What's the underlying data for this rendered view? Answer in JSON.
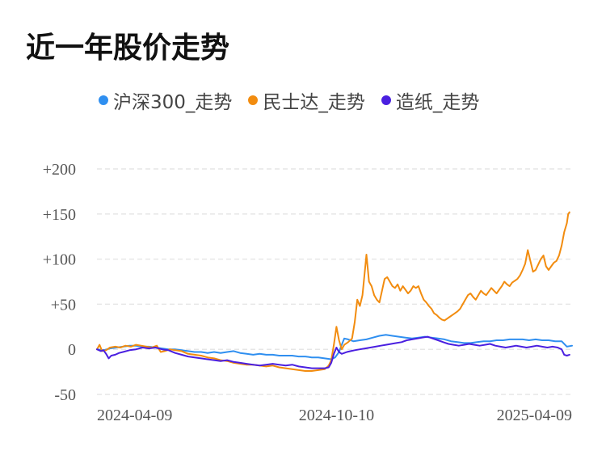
{
  "page": {
    "title": "近一年股价走势"
  },
  "chart_data": {
    "type": "line",
    "title": "近一年股价走势",
    "xlabel": "",
    "ylabel": "",
    "x_ticks": [
      "2024-04-09",
      "2024-10-10",
      "2025-04-09"
    ],
    "y_ticks": [
      "+200",
      "+150",
      "+100",
      "+50",
      "0",
      "-50"
    ],
    "y_tick_values": [
      200,
      150,
      100,
      50,
      0,
      -50
    ],
    "ylim": [
      -50,
      200
    ],
    "grid": true,
    "legend_position": "top",
    "x_start": "2024-04-09",
    "x_end": "2025-04-09",
    "series": [
      {
        "name": "沪深300_走势",
        "color": "#2f8ff0",
        "points": [
          [
            0,
            0
          ],
          [
            5,
            -1
          ],
          [
            10,
            1
          ],
          [
            15,
            2
          ],
          [
            20,
            3
          ],
          [
            25,
            4
          ],
          [
            30,
            4
          ],
          [
            35,
            3
          ],
          [
            40,
            3
          ],
          [
            45,
            2
          ],
          [
            50,
            1
          ],
          [
            55,
            0
          ],
          [
            60,
            0
          ],
          [
            65,
            -1
          ],
          [
            70,
            -2
          ],
          [
            75,
            -3
          ],
          [
            80,
            -3
          ],
          [
            85,
            -4
          ],
          [
            90,
            -3
          ],
          [
            95,
            -4
          ],
          [
            100,
            -3
          ],
          [
            105,
            -2
          ],
          [
            110,
            -4
          ],
          [
            115,
            -5
          ],
          [
            120,
            -6
          ],
          [
            125,
            -5
          ],
          [
            130,
            -6
          ],
          [
            135,
            -6
          ],
          [
            140,
            -7
          ],
          [
            145,
            -7
          ],
          [
            150,
            -7
          ],
          [
            155,
            -8
          ],
          [
            160,
            -8
          ],
          [
            165,
            -9
          ],
          [
            170,
            -9
          ],
          [
            175,
            -10
          ],
          [
            180,
            -11
          ],
          [
            183,
            -9
          ],
          [
            186,
            -3
          ],
          [
            188,
            5
          ],
          [
            190,
            12
          ],
          [
            193,
            11
          ],
          [
            197,
            9
          ],
          [
            202,
            10
          ],
          [
            207,
            11
          ],
          [
            212,
            13
          ],
          [
            217,
            15
          ],
          [
            222,
            16
          ],
          [
            227,
            15
          ],
          [
            232,
            14
          ],
          [
            237,
            13
          ],
          [
            242,
            12
          ],
          [
            247,
            13
          ],
          [
            252,
            14
          ],
          [
            257,
            13
          ],
          [
            262,
            12
          ],
          [
            267,
            11
          ],
          [
            272,
            9
          ],
          [
            277,
            8
          ],
          [
            282,
            7
          ],
          [
            287,
            7
          ],
          [
            292,
            8
          ],
          [
            297,
            9
          ],
          [
            302,
            9
          ],
          [
            307,
            10
          ],
          [
            312,
            10
          ],
          [
            317,
            11
          ],
          [
            322,
            11
          ],
          [
            327,
            11
          ],
          [
            332,
            10
          ],
          [
            337,
            11
          ],
          [
            342,
            10
          ],
          [
            347,
            10
          ],
          [
            352,
            9
          ],
          [
            357,
            9
          ],
          [
            361,
            3
          ],
          [
            365,
            4
          ]
        ]
      },
      {
        "name": "民士达_走势",
        "color": "#f28c0f",
        "points": [
          [
            0,
            0
          ],
          [
            2,
            5
          ],
          [
            4,
            -2
          ],
          [
            7,
            -1
          ],
          [
            10,
            2
          ],
          [
            14,
            3
          ],
          [
            18,
            2
          ],
          [
            22,
            4
          ],
          [
            26,
            3
          ],
          [
            30,
            5
          ],
          [
            34,
            4
          ],
          [
            38,
            3
          ],
          [
            42,
            2
          ],
          [
            46,
            4
          ],
          [
            49,
            -3
          ],
          [
            52,
            -2
          ],
          [
            56,
            0
          ],
          [
            60,
            -1
          ],
          [
            65,
            -2
          ],
          [
            70,
            -5
          ],
          [
            75,
            -6
          ],
          [
            80,
            -7
          ],
          [
            85,
            -9
          ],
          [
            90,
            -10
          ],
          [
            95,
            -12
          ],
          [
            100,
            -13
          ],
          [
            105,
            -15
          ],
          [
            110,
            -16
          ],
          [
            115,
            -17
          ],
          [
            120,
            -17
          ],
          [
            125,
            -18
          ],
          [
            130,
            -19
          ],
          [
            135,
            -18
          ],
          [
            140,
            -20
          ],
          [
            145,
            -21
          ],
          [
            150,
            -22
          ],
          [
            155,
            -23
          ],
          [
            160,
            -24
          ],
          [
            165,
            -24
          ],
          [
            170,
            -23
          ],
          [
            175,
            -22
          ],
          [
            178,
            -18
          ],
          [
            180,
            -12
          ],
          [
            182,
            5
          ],
          [
            184,
            25
          ],
          [
            186,
            10
          ],
          [
            188,
            0
          ],
          [
            190,
            5
          ],
          [
            193,
            8
          ],
          [
            196,
            12
          ],
          [
            198,
            30
          ],
          [
            200,
            55
          ],
          [
            202,
            48
          ],
          [
            204,
            60
          ],
          [
            206,
            90
          ],
          [
            207,
            105
          ],
          [
            209,
            75
          ],
          [
            211,
            70
          ],
          [
            213,
            60
          ],
          [
            215,
            55
          ],
          [
            217,
            52
          ],
          [
            219,
            65
          ],
          [
            221,
            78
          ],
          [
            223,
            80
          ],
          [
            225,
            75
          ],
          [
            227,
            70
          ],
          [
            229,
            68
          ],
          [
            231,
            72
          ],
          [
            233,
            65
          ],
          [
            235,
            70
          ],
          [
            237,
            66
          ],
          [
            239,
            62
          ],
          [
            241,
            65
          ],
          [
            243,
            70
          ],
          [
            245,
            68
          ],
          [
            247,
            70
          ],
          [
            249,
            62
          ],
          [
            251,
            55
          ],
          [
            253,
            52
          ],
          [
            255,
            48
          ],
          [
            257,
            45
          ],
          [
            259,
            40
          ],
          [
            261,
            38
          ],
          [
            263,
            35
          ],
          [
            265,
            33
          ],
          [
            267,
            32
          ],
          [
            269,
            34
          ],
          [
            271,
            36
          ],
          [
            273,
            38
          ],
          [
            275,
            40
          ],
          [
            277,
            42
          ],
          [
            279,
            45
          ],
          [
            281,
            50
          ],
          [
            283,
            55
          ],
          [
            285,
            60
          ],
          [
            287,
            62
          ],
          [
            289,
            58
          ],
          [
            291,
            55
          ],
          [
            293,
            60
          ],
          [
            295,
            65
          ],
          [
            297,
            62
          ],
          [
            299,
            60
          ],
          [
            301,
            64
          ],
          [
            303,
            68
          ],
          [
            305,
            65
          ],
          [
            307,
            62
          ],
          [
            309,
            66
          ],
          [
            311,
            70
          ],
          [
            313,
            75
          ],
          [
            315,
            72
          ],
          [
            317,
            70
          ],
          [
            319,
            74
          ],
          [
            321,
            76
          ],
          [
            323,
            78
          ],
          [
            325,
            82
          ],
          [
            327,
            88
          ],
          [
            329,
            95
          ],
          [
            331,
            110
          ],
          [
            333,
            98
          ],
          [
            335,
            86
          ],
          [
            337,
            88
          ],
          [
            339,
            94
          ],
          [
            341,
            100
          ],
          [
            343,
            104
          ],
          [
            345,
            92
          ],
          [
            347,
            88
          ],
          [
            349,
            92
          ],
          [
            351,
            96
          ],
          [
            353,
            98
          ],
          [
            355,
            104
          ],
          [
            357,
            115
          ],
          [
            359,
            130
          ],
          [
            361,
            140
          ],
          [
            362,
            150
          ],
          [
            363,
            152
          ]
        ]
      },
      {
        "name": "造纸_走势",
        "color": "#4a1fe0",
        "points": [
          [
            0,
            0
          ],
          [
            3,
            -2
          ],
          [
            5,
            -1
          ],
          [
            7,
            -5
          ],
          [
            9,
            -10
          ],
          [
            11,
            -7
          ],
          [
            14,
            -6
          ],
          [
            17,
            -4
          ],
          [
            20,
            -3
          ],
          [
            25,
            -1
          ],
          [
            30,
            0
          ],
          [
            35,
            2
          ],
          [
            40,
            1
          ],
          [
            45,
            2
          ],
          [
            50,
            0
          ],
          [
            55,
            -1
          ],
          [
            60,
            -4
          ],
          [
            65,
            -6
          ],
          [
            70,
            -8
          ],
          [
            75,
            -9
          ],
          [
            80,
            -10
          ],
          [
            85,
            -11
          ],
          [
            90,
            -12
          ],
          [
            95,
            -13
          ],
          [
            100,
            -12
          ],
          [
            105,
            -14
          ],
          [
            110,
            -15
          ],
          [
            115,
            -16
          ],
          [
            120,
            -17
          ],
          [
            125,
            -18
          ],
          [
            130,
            -17
          ],
          [
            135,
            -16
          ],
          [
            140,
            -17
          ],
          [
            145,
            -18
          ],
          [
            150,
            -17
          ],
          [
            155,
            -19
          ],
          [
            160,
            -20
          ],
          [
            165,
            -21
          ],
          [
            170,
            -21
          ],
          [
            175,
            -21
          ],
          [
            178,
            -20
          ],
          [
            180,
            -15
          ],
          [
            182,
            -5
          ],
          [
            184,
            2
          ],
          [
            186,
            -3
          ],
          [
            188,
            -5
          ],
          [
            190,
            -4
          ],
          [
            192,
            -3
          ],
          [
            195,
            -2
          ],
          [
            198,
            -1
          ],
          [
            202,
            0
          ],
          [
            206,
            1
          ],
          [
            210,
            2
          ],
          [
            214,
            3
          ],
          [
            218,
            4
          ],
          [
            222,
            5
          ],
          [
            226,
            6
          ],
          [
            230,
            7
          ],
          [
            234,
            8
          ],
          [
            238,
            10
          ],
          [
            242,
            11
          ],
          [
            246,
            12
          ],
          [
            250,
            13
          ],
          [
            254,
            14
          ],
          [
            258,
            12
          ],
          [
            262,
            10
          ],
          [
            266,
            8
          ],
          [
            270,
            6
          ],
          [
            274,
            5
          ],
          [
            278,
            4
          ],
          [
            282,
            5
          ],
          [
            286,
            6
          ],
          [
            290,
            5
          ],
          [
            294,
            4
          ],
          [
            298,
            5
          ],
          [
            302,
            6
          ],
          [
            306,
            4
          ],
          [
            310,
            3
          ],
          [
            314,
            2
          ],
          [
            318,
            3
          ],
          [
            322,
            4
          ],
          [
            326,
            3
          ],
          [
            330,
            2
          ],
          [
            334,
            3
          ],
          [
            338,
            4
          ],
          [
            342,
            3
          ],
          [
            346,
            2
          ],
          [
            350,
            3
          ],
          [
            354,
            2
          ],
          [
            357,
            0
          ],
          [
            359,
            -6
          ],
          [
            361,
            -7
          ],
          [
            363,
            -6
          ]
        ]
      }
    ]
  }
}
